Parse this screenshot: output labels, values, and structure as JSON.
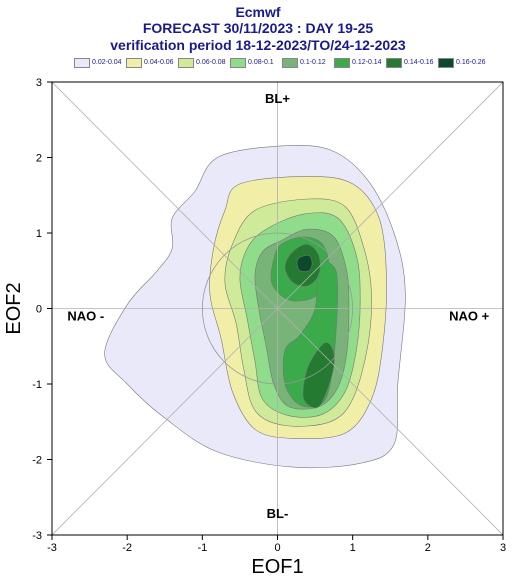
{
  "header": {
    "line1": "Ecmwf",
    "line2": "FORECAST 30/11/2023 : DAY 19-25",
    "line3": "verification period 18-12-2023/TO/24-12-2023"
  },
  "legend": [
    {
      "label": "0.02-0.04",
      "color": "#e9e9f9"
    },
    {
      "label": "0.04-0.06",
      "color": "#f0eea7"
    },
    {
      "label": "0.06-0.08",
      "color": "#cfeb99"
    },
    {
      "label": "0.08-0.1",
      "color": "#8fdc8a"
    },
    {
      "label": "0.1-0.12",
      "color": "#78b477"
    },
    {
      "label": "0.12-0.14",
      "color": "#3aaa4a"
    },
    {
      "label": "0.14-0.16",
      "color": "#237a30"
    },
    {
      "label": "0.16-0.26",
      "color": "#0a4a2a"
    }
  ],
  "chart_data": {
    "type": "contour",
    "xlabel": "EOF1",
    "ylabel": "EOF2",
    "xlim": [
      -3,
      3
    ],
    "ylim": [
      -3,
      3
    ],
    "xticks": [
      "-3",
      "-2",
      "-1",
      "0",
      "1",
      "2",
      "3"
    ],
    "yticks": [
      "-3",
      "-2",
      "-1",
      "0",
      "1",
      "2",
      "3"
    ],
    "regime_labels": {
      "top": "BL+",
      "bottom": "BL-",
      "left": "NAO -",
      "right": "NAO +"
    },
    "reference_circle_radius": 1,
    "levels": [
      {
        "range": "0.02-0.04",
        "polygon": [
          [
            -0.8,
            2.0
          ],
          [
            0,
            2.15
          ],
          [
            0.7,
            2.1
          ],
          [
            1.2,
            1.7
          ],
          [
            1.55,
            1.0
          ],
          [
            1.7,
            0.2
          ],
          [
            1.6,
            -1.0
          ],
          [
            1.55,
            -1.8
          ],
          [
            1.1,
            -2.05
          ],
          [
            0.2,
            -2.1
          ],
          [
            -0.8,
            -1.9
          ],
          [
            -1.5,
            -1.45
          ],
          [
            -2.0,
            -1.0
          ],
          [
            -2.3,
            -0.6
          ],
          [
            -2.0,
            0.05
          ],
          [
            -1.6,
            0.5
          ],
          [
            -1.4,
            0.8
          ],
          [
            -1.4,
            1.2
          ],
          [
            -1.1,
            1.55
          ]
        ]
      },
      {
        "range": "0.04-0.06",
        "polygon": [
          [
            -0.5,
            1.65
          ],
          [
            0.4,
            1.75
          ],
          [
            1.0,
            1.65
          ],
          [
            1.35,
            1.2
          ],
          [
            1.45,
            0.4
          ],
          [
            1.4,
            -0.5
          ],
          [
            1.25,
            -1.2
          ],
          [
            0.9,
            -1.65
          ],
          [
            0.2,
            -1.72
          ],
          [
            -0.3,
            -1.6
          ],
          [
            -0.6,
            -1.1
          ],
          [
            -0.75,
            -0.4
          ],
          [
            -0.9,
            0.2
          ],
          [
            -0.85,
            0.8
          ],
          [
            -0.7,
            1.3
          ]
        ]
      },
      {
        "range": "0.06-0.08",
        "polygon": [
          [
            -0.3,
            1.3
          ],
          [
            0.4,
            1.45
          ],
          [
            0.9,
            1.35
          ],
          [
            1.15,
            0.8
          ],
          [
            1.25,
            0.2
          ],
          [
            1.2,
            -0.5
          ],
          [
            1.0,
            -1.2
          ],
          [
            0.7,
            -1.5
          ],
          [
            0.1,
            -1.55
          ],
          [
            -0.3,
            -1.35
          ],
          [
            -0.45,
            -0.8
          ],
          [
            -0.55,
            -0.2
          ],
          [
            -0.7,
            0.35
          ],
          [
            -0.6,
            0.85
          ]
        ]
      },
      {
        "range": "0.08-0.1",
        "polygon": [
          [
            -0.15,
            1.05
          ],
          [
            0.35,
            1.25
          ],
          [
            0.8,
            1.2
          ],
          [
            1.05,
            0.7
          ],
          [
            1.1,
            0.1
          ],
          [
            1.05,
            -0.55
          ],
          [
            0.9,
            -1.1
          ],
          [
            0.6,
            -1.4
          ],
          [
            0.15,
            -1.42
          ],
          [
            -0.2,
            -1.2
          ],
          [
            -0.3,
            -0.7
          ],
          [
            -0.4,
            -0.15
          ],
          [
            -0.5,
            0.4
          ],
          [
            -0.4,
            0.8
          ]
        ]
      },
      {
        "range": "0.1-0.12",
        "polygon": [
          [
            0.05,
            0.9
          ],
          [
            0.4,
            1.05
          ],
          [
            0.75,
            0.95
          ],
          [
            0.92,
            0.5
          ],
          [
            0.95,
            0.0
          ],
          [
            0.92,
            -0.6
          ],
          [
            0.8,
            -1.05
          ],
          [
            0.55,
            -1.3
          ],
          [
            0.15,
            -1.3
          ],
          [
            -0.05,
            -1.0
          ],
          [
            -0.15,
            -0.5
          ],
          [
            -0.25,
            0.0
          ],
          [
            -0.3,
            0.45
          ],
          [
            -0.2,
            0.75
          ]
        ]
      },
      {
        "range": "0.12-0.14",
        "polygon": [
          [
            0.05,
            0.85
          ],
          [
            0.35,
            0.95
          ],
          [
            0.6,
            0.85
          ],
          [
            0.68,
            0.55
          ],
          [
            0.55,
            0.2
          ],
          [
            0.3,
            0.1
          ],
          [
            0.08,
            0.15
          ],
          [
            -0.08,
            0.35
          ],
          [
            -0.05,
            0.65
          ]
        ]
      },
      {
        "range": "0.12-0.14",
        "polygon": [
          [
            0.55,
            0.6
          ],
          [
            0.75,
            0.55
          ],
          [
            0.8,
            0.3
          ],
          [
            0.78,
            -0.3
          ],
          [
            0.72,
            -0.9
          ],
          [
            0.6,
            -1.25
          ],
          [
            0.3,
            -1.28
          ],
          [
            0.1,
            -1.0
          ],
          [
            0.1,
            -0.55
          ],
          [
            0.3,
            -0.35
          ],
          [
            0.5,
            0.0
          ]
        ]
      },
      {
        "range": "0.14-0.16",
        "polygon": [
          [
            0.2,
            0.75
          ],
          [
            0.4,
            0.85
          ],
          [
            0.55,
            0.7
          ],
          [
            0.55,
            0.45
          ],
          [
            0.4,
            0.3
          ],
          [
            0.2,
            0.35
          ],
          [
            0.1,
            0.55
          ]
        ]
      },
      {
        "range": "0.14-0.16",
        "polygon": [
          [
            0.65,
            -0.45
          ],
          [
            0.75,
            -0.6
          ],
          [
            0.72,
            -0.9
          ],
          [
            0.55,
            -1.3
          ],
          [
            0.35,
            -1.2
          ],
          [
            0.38,
            -0.85
          ],
          [
            0.5,
            -0.6
          ]
        ]
      },
      {
        "range": "0.16-0.26",
        "polygon": [
          [
            0.3,
            0.68
          ],
          [
            0.42,
            0.7
          ],
          [
            0.46,
            0.6
          ],
          [
            0.42,
            0.5
          ],
          [
            0.3,
            0.5
          ],
          [
            0.26,
            0.6
          ]
        ]
      }
    ]
  }
}
